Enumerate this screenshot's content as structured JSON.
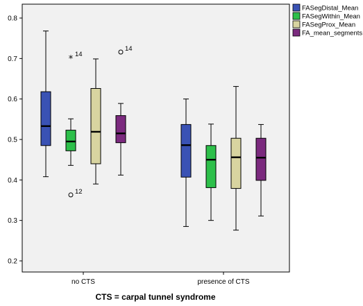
{
  "chart_data": {
    "type": "boxplot",
    "xlabel": "CTS = carpal tunnel syndrome",
    "ylabel": "",
    "ylim": [
      0.18,
      0.86
    ],
    "yticks": [
      0.2,
      0.3,
      0.4,
      0.5,
      0.6,
      0.7,
      0.8
    ],
    "categories": [
      "no CTS",
      "presence of CTS"
    ],
    "legend_position": "top-right",
    "grid": false,
    "series": [
      {
        "name": "FASegDistal_Mean",
        "color": "#3a52b4",
        "boxes": [
          {
            "min": 0.408,
            "q1": 0.485,
            "median": 0.533,
            "q3": 0.618,
            "max": 0.768,
            "outliers": []
          },
          {
            "min": 0.285,
            "q1": 0.407,
            "median": 0.486,
            "q3": 0.537,
            "max": 0.6,
            "outliers": []
          }
        ]
      },
      {
        "name": "FASegWithin_Mean",
        "color": "#2dbf4a",
        "boxes": [
          {
            "min": 0.436,
            "q1": 0.472,
            "median": 0.495,
            "q3": 0.523,
            "max": 0.551,
            "outliers": [
              {
                "value": 0.702,
                "marker": "star",
                "label": "14"
              },
              {
                "value": 0.363,
                "marker": "circle",
                "label": "12"
              }
            ]
          },
          {
            "min": 0.3,
            "q1": 0.381,
            "median": 0.45,
            "q3": 0.485,
            "max": 0.538,
            "outliers": []
          }
        ]
      },
      {
        "name": "FASegProx_Mean",
        "color": "#d8d4a0",
        "boxes": [
          {
            "min": 0.39,
            "q1": 0.44,
            "median": 0.519,
            "q3": 0.626,
            "max": 0.699,
            "outliers": []
          },
          {
            "min": 0.276,
            "q1": 0.379,
            "median": 0.456,
            "q3": 0.503,
            "max": 0.631,
            "outliers": []
          }
        ]
      },
      {
        "name": "FA_mean_segments",
        "color": "#7b2a7e",
        "boxes": [
          {
            "min": 0.412,
            "q1": 0.492,
            "median": 0.515,
            "q3": 0.559,
            "max": 0.589,
            "outliers": [
              {
                "value": 0.716,
                "marker": "circle",
                "label": "14"
              }
            ]
          },
          {
            "min": 0.311,
            "q1": 0.399,
            "median": 0.455,
            "q3": 0.503,
            "max": 0.537,
            "outliers": []
          }
        ]
      }
    ]
  }
}
